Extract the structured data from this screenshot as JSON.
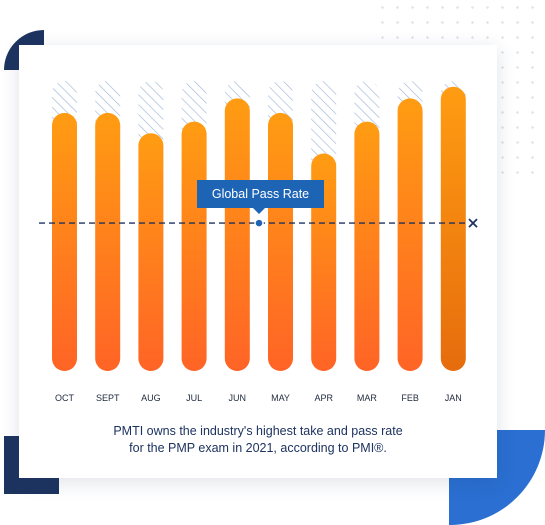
{
  "chart_data": {
    "type": "bar",
    "categories": [
      "OCT",
      "SEPT",
      "AUG",
      "JUL",
      "JUN",
      "MAY",
      "APR",
      "MAR",
      "FEB",
      "JAN"
    ],
    "values": [
      89,
      89,
      82,
      86,
      94,
      89,
      75,
      86,
      94,
      98
    ],
    "max_values": [
      100,
      100,
      100,
      100,
      100,
      100,
      100,
      100,
      100,
      100
    ],
    "ylim": [
      0,
      100
    ],
    "reference_line": {
      "label": "Global Pass Rate",
      "value": 51
    },
    "colors": {
      "bar_top": "#ff9c12",
      "bar_bottom": "#ff6426",
      "jan_bottom": "#e66c0d",
      "hatch": "#9fb6d6",
      "line": "#1d3360",
      "tooltip": "#1e64b5"
    }
  },
  "caption": {
    "line1": "PMTI owns the industry's highest take and pass rate",
    "line2": "for the PMP exam in 2021, according to PMI®."
  }
}
